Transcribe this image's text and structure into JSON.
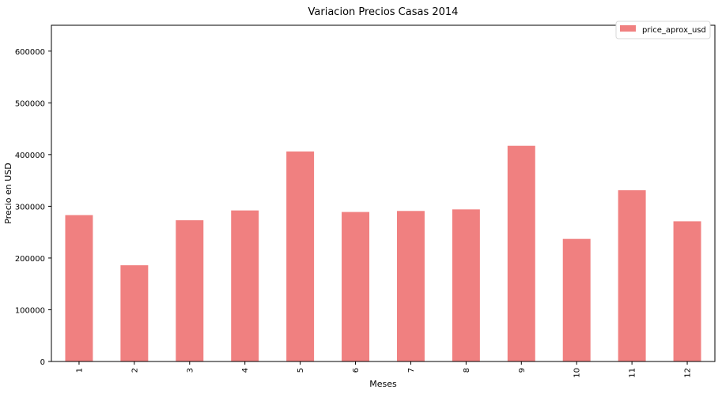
{
  "chart_data": {
    "type": "bar",
    "title": "Variacion Precios Casas 2014",
    "xlabel": "Meses",
    "ylabel": "Precio en USD",
    "categories": [
      "1",
      "2",
      "3",
      "4",
      "5",
      "6",
      "7",
      "8",
      "9",
      "10",
      "11",
      "12"
    ],
    "series": [
      {
        "name": "price_aprox_usd",
        "values": [
          283000,
          186000,
          273000,
          292000,
          406000,
          289000,
          291000,
          294000,
          417000,
          237000,
          331000,
          271000
        ]
      }
    ],
    "ylim": [
      0,
      650000
    ],
    "yticks": [
      0,
      100000,
      200000,
      300000,
      400000,
      500000,
      600000
    ],
    "ytick_labels": [
      "0",
      "100000",
      "200000",
      "300000",
      "400000",
      "500000",
      "600000"
    ],
    "xtick_rotation": "vertical",
    "grid": false,
    "legend_position": "top-right",
    "bar_color": "#f08080",
    "axis_color": "#000000"
  }
}
